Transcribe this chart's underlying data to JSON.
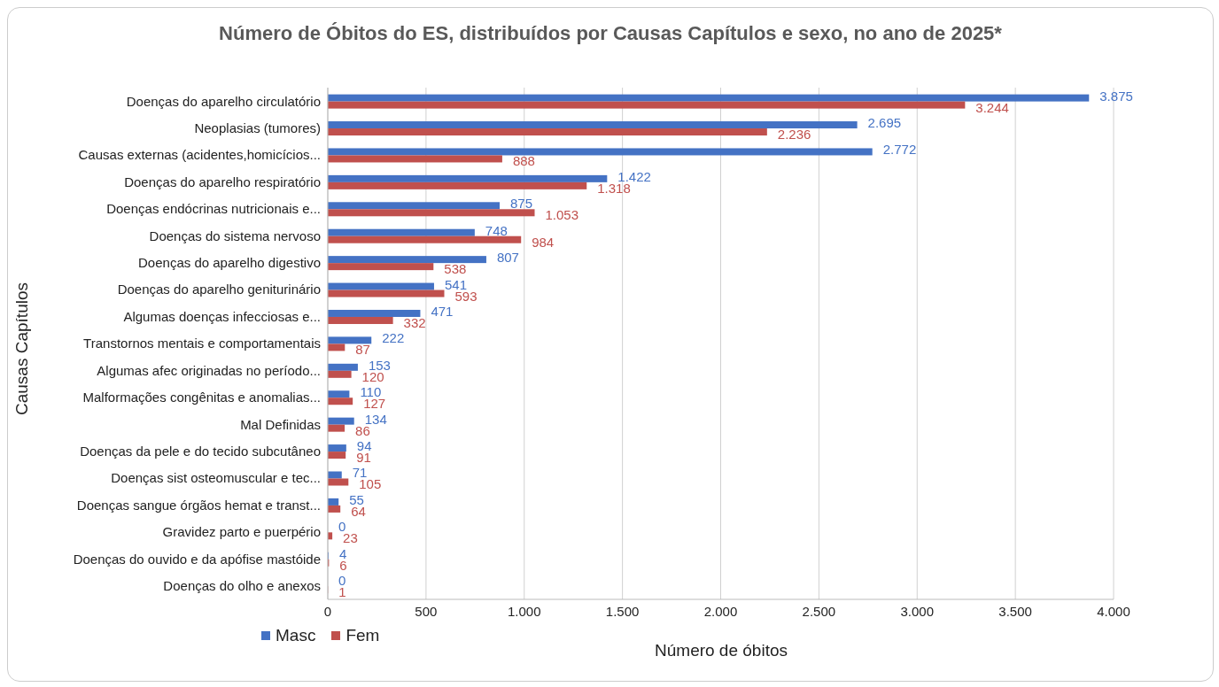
{
  "chart_data": {
    "type": "bar",
    "orientation": "horizontal",
    "title": "Número de Óbitos do ES, distribuídos por Causas Capítulos e sexo, no ano de 2025*",
    "xlabel": "Número de óbitos",
    "ylabel": "Causas Capítulos",
    "categories": [
      "Doenças do aparelho circulatório",
      "Neoplasias (tumores)",
      "Causas externas (acidentes,homicícios...",
      "Doenças do aparelho respiratório",
      "Doenças endócrinas nutricionais e...",
      "Doenças do sistema nervoso",
      "Doenças do aparelho digestivo",
      "Doenças do aparelho geniturinário",
      "Algumas doenças infecciosas e...",
      "Transtornos mentais e comportamentais",
      "Algumas afec originadas no período...",
      "Malformações congênitas e anomalias...",
      "Mal Definidas",
      "Doenças da pele e do tecido subcutâneo",
      "Doenças sist osteomuscular e tec...",
      "Doenças sangue órgãos hemat e transt...",
      "Gravidez parto e puerpério",
      "Doenças do ouvido e da apófise mastóide",
      "Doenças do olho e anexos"
    ],
    "series": [
      {
        "name": "Masc",
        "color": "#4472c4",
        "values": [
          3875,
          2695,
          2772,
          1422,
          875,
          748,
          807,
          541,
          471,
          222,
          153,
          110,
          134,
          94,
          71,
          55,
          0,
          4,
          0
        ],
        "value_labels": [
          "3.875",
          "2.695",
          "2.772",
          "1.422",
          "875",
          "748",
          "807",
          "541",
          "471",
          "222",
          "153",
          "110",
          "134",
          "94",
          "71",
          "55",
          "0",
          "4",
          "0"
        ]
      },
      {
        "name": "Fem",
        "color": "#c0504d",
        "values": [
          3244,
          2236,
          888,
          1318,
          1053,
          984,
          538,
          593,
          332,
          87,
          120,
          127,
          86,
          91,
          105,
          64,
          23,
          6,
          1
        ],
        "value_labels": [
          "3.244",
          "2.236",
          "888",
          "1.318",
          "1.053",
          "984",
          "538",
          "593",
          "332",
          "87",
          "120",
          "127",
          "86",
          "91",
          "105",
          "64",
          "23",
          "6",
          "1"
        ]
      }
    ],
    "xlim": [
      0,
      4000
    ],
    "xticks": [
      0,
      500,
      {
        "value": 1000,
        "label": "1.000"
      },
      {
        "value": 1500,
        "label": "1.500"
      },
      {
        "value": 2000,
        "label": "2.000"
      },
      {
        "value": 2500,
        "label": "2.500"
      },
      {
        "value": 3000,
        "label": "3.000"
      },
      {
        "value": 3500,
        "label": "3.500"
      },
      {
        "value": 4000,
        "label": "4.000"
      }
    ],
    "grid": "x",
    "legend": "bottom left"
  }
}
